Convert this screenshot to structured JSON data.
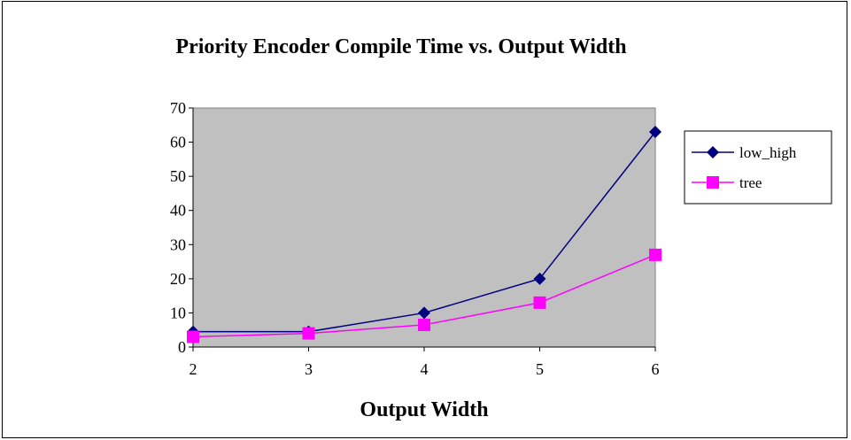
{
  "chart_data": {
    "type": "line",
    "title": "Priority Encoder Compile Time vs. Output Width",
    "xlabel": "Output Width",
    "ylabel": "",
    "x": [
      2,
      3,
      4,
      5,
      6
    ],
    "ylim": [
      0,
      70
    ],
    "yticks": [
      0,
      10,
      20,
      30,
      40,
      50,
      60,
      70
    ],
    "xtick_labels": [
      "2",
      "3",
      "4",
      "5",
      "6"
    ],
    "ytick_labels": [
      "0",
      "10",
      "20",
      "30",
      "40",
      "50",
      "60",
      "70"
    ],
    "grid": false,
    "plot_background": "#c0c0c0",
    "legend_position": "right",
    "series": [
      {
        "name": "low_high",
        "values": [
          4.5,
          4.5,
          10,
          20,
          63
        ],
        "color": "#000080",
        "marker": "diamond"
      },
      {
        "name": "tree",
        "values": [
          3,
          4,
          6.5,
          13,
          27
        ],
        "color": "#ff00ff",
        "marker": "square"
      }
    ]
  }
}
